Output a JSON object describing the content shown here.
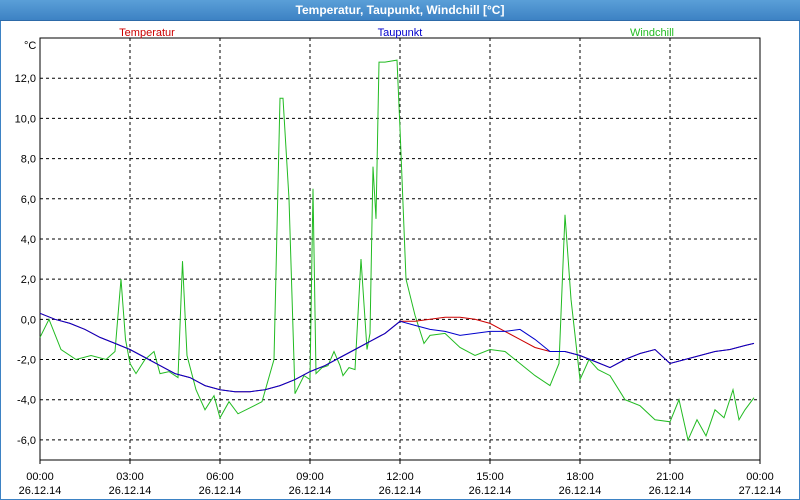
{
  "window": {
    "title": "Temperatur, Taupunkt, Windchill [°C]"
  },
  "chart_data": {
    "type": "line",
    "title": "Temperatur, Taupunkt, Windchill [°C]",
    "ylabel": "°C",
    "ylim": [
      -7,
      14
    ],
    "xlim": [
      0,
      24
    ],
    "grid": true,
    "legend_placement": "top",
    "yticks": [
      -6,
      -4,
      -2,
      0,
      2,
      4,
      6,
      8,
      10,
      12
    ],
    "ytick_labels": [
      "-6,0",
      "-4,0",
      "-2,0",
      "0,0",
      "2,0",
      "4,0",
      "6,0",
      "8,0",
      "10,0",
      "12,0"
    ],
    "xticks": [
      {
        "x": 0,
        "time": "00:00",
        "date": "26.12.14"
      },
      {
        "x": 3,
        "time": "03:00",
        "date": "26.12.14"
      },
      {
        "x": 6,
        "time": "06:00",
        "date": "26.12.14"
      },
      {
        "x": 9,
        "time": "09:00",
        "date": "26.12.14"
      },
      {
        "x": 12,
        "time": "12:00",
        "date": "26.12.14"
      },
      {
        "x": 15,
        "time": "15:00",
        "date": "26.12.14"
      },
      {
        "x": 18,
        "time": "18:00",
        "date": "26.12.14"
      },
      {
        "x": 21,
        "time": "21:00",
        "date": "26.12.14"
      },
      {
        "x": 24,
        "time": "00:00",
        "date": "27.12.14"
      }
    ],
    "series": [
      {
        "name": "Temperatur",
        "color": "#cc0000",
        "x": [
          0,
          0.5,
          1,
          1.5,
          2,
          2.5,
          3,
          3.5,
          4,
          4.5,
          5,
          5.5,
          6,
          6.5,
          7,
          7.5,
          8,
          8.5,
          9,
          9.5,
          10,
          10.5,
          11,
          11.5,
          12,
          12.5,
          13,
          13.5,
          14,
          14.5,
          15,
          15.5,
          16,
          16.5,
          17,
          17.5,
          18,
          18.5,
          19,
          19.5,
          20,
          20.5,
          21,
          21.5,
          22,
          22.5,
          23,
          23.5,
          23.8
        ],
        "values": [
          0.3,
          0,
          -0.2,
          -0.5,
          -0.9,
          -1.2,
          -1.5,
          -1.9,
          -2.3,
          -2.7,
          -2.9,
          -3.3,
          -3.5,
          -3.6,
          -3.6,
          -3.5,
          -3.3,
          -3.0,
          -2.6,
          -2.3,
          -1.9,
          -1.5,
          -1.1,
          -0.7,
          -0.1,
          -0.1,
          0,
          0.1,
          0.1,
          0,
          -0.2,
          -0.6,
          -1.0,
          -1.4,
          -1.6,
          -1.6,
          -1.8,
          -2.1,
          -2.4,
          -2.0,
          -1.7,
          -1.5,
          -2.2,
          -2.0,
          -1.8,
          -1.6,
          -1.5,
          -1.3,
          -1.2
        ]
      },
      {
        "name": "Taupunkt",
        "color": "#0000cc",
        "x": [
          0,
          0.5,
          1,
          1.5,
          2,
          2.5,
          3,
          3.5,
          4,
          4.5,
          5,
          5.5,
          6,
          6.5,
          7,
          7.5,
          8,
          8.5,
          9,
          9.5,
          10,
          10.5,
          11,
          11.5,
          12,
          12.5,
          13,
          13.5,
          14,
          14.5,
          15,
          15.5,
          16,
          16.5,
          17,
          17.5,
          18,
          18.5,
          19,
          19.5,
          20,
          20.5,
          21,
          21.5,
          22,
          22.5,
          23,
          23.5,
          23.8
        ],
        "values": [
          0.3,
          0,
          -0.2,
          -0.5,
          -0.9,
          -1.2,
          -1.5,
          -1.9,
          -2.3,
          -2.7,
          -2.9,
          -3.3,
          -3.5,
          -3.6,
          -3.6,
          -3.5,
          -3.3,
          -3.0,
          -2.6,
          -2.3,
          -1.9,
          -1.5,
          -1.1,
          -0.7,
          -0.1,
          -0.3,
          -0.5,
          -0.6,
          -0.8,
          -0.7,
          -0.6,
          -0.6,
          -0.5,
          -1.0,
          -1.6,
          -1.6,
          -1.8,
          -2.1,
          -2.4,
          -2.0,
          -1.7,
          -1.5,
          -2.2,
          -2.0,
          -1.8,
          -1.6,
          -1.5,
          -1.3,
          -1.2
        ]
      },
      {
        "name": "Windchill",
        "color": "#22bb22",
        "x": [
          0,
          0.3,
          0.7,
          1.2,
          1.7,
          2.2,
          2.5,
          2.7,
          2.85,
          3.0,
          3.2,
          3.5,
          3.8,
          4.0,
          4.3,
          4.6,
          4.75,
          4.9,
          5.2,
          5.5,
          5.8,
          6.0,
          6.3,
          6.6,
          7.0,
          7.4,
          7.8,
          8.0,
          8.1,
          8.3,
          8.5,
          8.8,
          9.0,
          9.1,
          9.2,
          9.4,
          9.6,
          9.8,
          10.0,
          10.1,
          10.3,
          10.5,
          10.7,
          10.9,
          11.0,
          11.1,
          11.2,
          11.3,
          11.5,
          11.9,
          12.0,
          12.2,
          12.5,
          12.8,
          13.0,
          13.5,
          14.0,
          14.5,
          15.0,
          15.5,
          16.0,
          16.5,
          17.0,
          17.3,
          17.5,
          17.7,
          18.0,
          18.3,
          18.6,
          19.0,
          19.5,
          20.0,
          20.5,
          21.0,
          21.3,
          21.6,
          21.9,
          22.2,
          22.5,
          22.8,
          23.1,
          23.3,
          23.5,
          23.8
        ],
        "values": [
          -0.9,
          0,
          -1.5,
          -2.0,
          -1.8,
          -2.0,
          -1.6,
          2.0,
          -1.0,
          -2.2,
          -2.7,
          -2.0,
          -1.6,
          -2.7,
          -2.6,
          -2.9,
          2.9,
          -1.8,
          -3.5,
          -4.5,
          -3.8,
          -4.9,
          -4.1,
          -4.7,
          -4.4,
          -4.1,
          -2.0,
          11.0,
          11.0,
          6.0,
          -3.7,
          -2.8,
          -3.0,
          6.5,
          -2.7,
          -2.4,
          -2.3,
          -1.6,
          -2.3,
          -2.8,
          -2.4,
          -2.5,
          3.0,
          -1.5,
          -0.7,
          7.6,
          5.0,
          12.8,
          12.8,
          12.9,
          9.5,
          2.0,
          0.2,
          -1.2,
          -0.8,
          -0.7,
          -1.4,
          -1.8,
          -1.5,
          -1.6,
          -2.2,
          -2.8,
          -3.3,
          -2.2,
          5.2,
          1.0,
          -3.0,
          -2.0,
          -2.5,
          -2.8,
          -4.0,
          -4.3,
          -5.0,
          -5.1,
          -4.0,
          -6.0,
          -5.0,
          -5.8,
          -4.5,
          -4.9,
          -3.5,
          -5.0,
          -4.5,
          -3.9
        ]
      }
    ]
  }
}
